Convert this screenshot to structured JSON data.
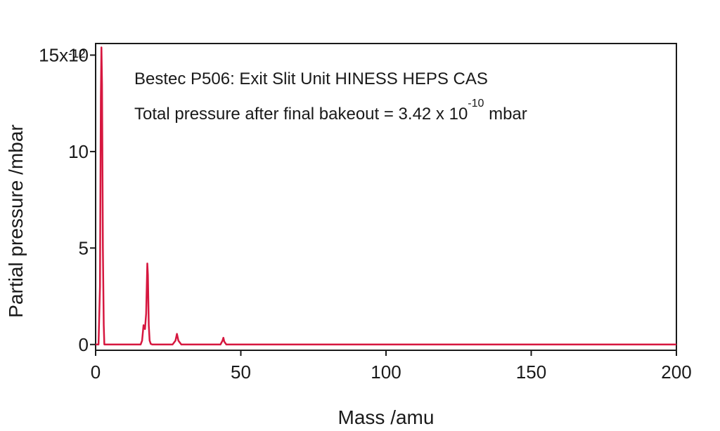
{
  "chart_data": {
    "type": "line",
    "annotations": {
      "line1": "Bestec P506: Exit Slit Unit HINESS HEPS CAS",
      "line2_prefix": "Total pressure after final bakeout = 3.42 x 10",
      "line2_exponent": "-10",
      "line2_suffix": " mbar"
    },
    "xlabel": "Mass /amu",
    "ylabel": "Partial pressure /mbar",
    "xlim": [
      0,
      200
    ],
    "ylim": [
      -0.3,
      15.6
    ],
    "x_ticks": [
      0,
      50,
      100,
      150,
      200
    ],
    "x_tick_labels": [
      "0",
      "50",
      "100",
      "150",
      "200"
    ],
    "y_ticks": [
      0,
      5,
      10,
      15
    ],
    "y_tick_labels": [
      "0",
      "5",
      "10",
      "15x10"
    ],
    "y_top_exponent": "-12",
    "grid": false,
    "series": [
      {
        "color": "#d6173f",
        "x": [
          0,
          1.0,
          1.5,
          1.8,
          2.0,
          2.2,
          2.5,
          2.8,
          3.0,
          3.5,
          15.5,
          16.0,
          16.5,
          17.0,
          17.4,
          17.8,
          18.0,
          18.3,
          18.6,
          19.0,
          19.5,
          26.5,
          27.5,
          28.0,
          28.5,
          29.5,
          43.0,
          43.7,
          44.0,
          44.3,
          45.0,
          200
        ],
        "y": [
          0,
          0,
          3.0,
          12.8,
          15.4,
          13.5,
          5.0,
          1.0,
          0,
          0,
          0,
          0.2,
          1.0,
          0.8,
          1.6,
          4.2,
          3.6,
          1.0,
          0.2,
          0.03,
          0,
          0,
          0.2,
          0.55,
          0.2,
          0,
          0,
          0.2,
          0.35,
          0.15,
          0,
          0
        ]
      }
    ]
  }
}
